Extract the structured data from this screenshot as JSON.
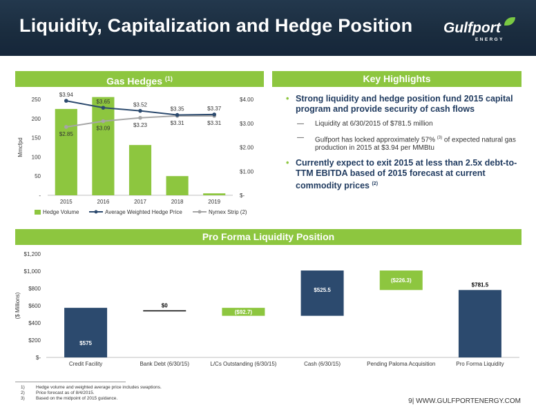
{
  "header": {
    "title": "Liquidity, Capitalization and Hedge Position",
    "logo_word": "Gulfport",
    "logo_sub": "ENERGY"
  },
  "sections": {
    "gas_hedges": "Gas Hedges",
    "gas_hedges_note": "(1)",
    "key_highlights": "Key Highlights",
    "pro_forma": "Pro Forma Liquidity Position"
  },
  "highlights": [
    {
      "text": "Strong liquidity and hedge position fund 2015 capital program and provide security of cash flows",
      "note": ""
    },
    {
      "text": "Currently expect to exit 2015 at less than 2.5x debt-to-TTM EBITDA based of 2015 forecast at current commodity prices",
      "note": "(2)"
    }
  ],
  "sub_bullets": [
    {
      "before": "Liquidity at 6/30/2015 of $781.5 million",
      "note": "",
      "after": ""
    },
    {
      "before": "Gulfport has locked approximately 57%",
      "note": "(3)",
      "after": " of expected natural gas production in 2015 at $3.94 per MMBtu"
    }
  ],
  "colors": {
    "green": "#8dc63f",
    "navy": "#2c4a6e",
    "gray_line": "#a6a6a6",
    "header_bg": "#1a2c3e"
  },
  "chart_data": [
    {
      "type": "bar",
      "categories": [
        "2015",
        "2016",
        "2017",
        "2018",
        "2019"
      ],
      "ylabel": "Mmcfpd",
      "ylim": [
        0,
        250
      ],
      "yticks": [
        "-",
        "50",
        "100",
        "150",
        "200",
        "250"
      ],
      "y2lim": [
        0,
        4.0
      ],
      "y2ticks": [
        "$-",
        "$1.00",
        "$2.00",
        "$3.00",
        "$4.00"
      ],
      "series": [
        {
          "name": "Hedge Volume",
          "kind": "bar",
          "axis": "left",
          "values": [
            225,
            256,
            131,
            50,
            5
          ]
        },
        {
          "name": "Average Weighted Hedge Price",
          "kind": "line",
          "axis": "right",
          "values": [
            3.94,
            3.65,
            3.52,
            3.35,
            3.37
          ],
          "labels": [
            "$3.94",
            "$3.65",
            "$3.52",
            "$3.35",
            "$3.37"
          ]
        },
        {
          "name": "Nymex Strip (2)",
          "kind": "line",
          "axis": "right",
          "values": [
            2.85,
            3.09,
            3.23,
            3.31,
            3.31
          ],
          "labels": [
            "$2.85",
            "$3.09",
            "$3.23",
            "$3.31",
            "$3.31"
          ]
        }
      ],
      "grid": false,
      "legend": "bottom"
    },
    {
      "type": "bar",
      "subtype": "waterfall",
      "categories": [
        "Credit Facility",
        "Bank Debt (6/30/15)",
        "L/Cs Outstanding (6/30/15)",
        "Cash (6/30/15)",
        "Pending Paloma Acquisition",
        "Pro Forma Liquidity"
      ],
      "ylabel": "($ Millions)",
      "ylim": [
        0,
        1200
      ],
      "yticks": [
        "$-",
        "$200",
        "$400",
        "$600",
        "$800",
        "$1,000",
        "$1,200"
      ],
      "bars": [
        {
          "base": 0,
          "value": 575,
          "label": "$575",
          "color": "navy"
        },
        {
          "base": 540,
          "value": 0,
          "label": "$0",
          "color": "black"
        },
        {
          "base": 482.3,
          "value": 92.7,
          "label": "($92.7)",
          "color": "green"
        },
        {
          "base": 482.3,
          "value": 525.5,
          "label": "$525.5",
          "color": "navy"
        },
        {
          "base": 781.5,
          "value": 226.3,
          "label": "($226.3)",
          "color": "green"
        },
        {
          "base": 0,
          "value": 781.5,
          "label": "$781.5",
          "color": "navy"
        }
      ],
      "grid": false
    }
  ],
  "footnotes": [
    {
      "num": "1)",
      "text": "Hedge volume and weighted average price includes swaptions."
    },
    {
      "num": "2)",
      "text": "Price forecast as of 8/4/2015."
    },
    {
      "num": "3)",
      "text": "Based on the midpoint of 2015 guidance."
    }
  ],
  "footer": {
    "page": "9",
    "site": "WWW.GULFPORTENERGY.COM"
  }
}
